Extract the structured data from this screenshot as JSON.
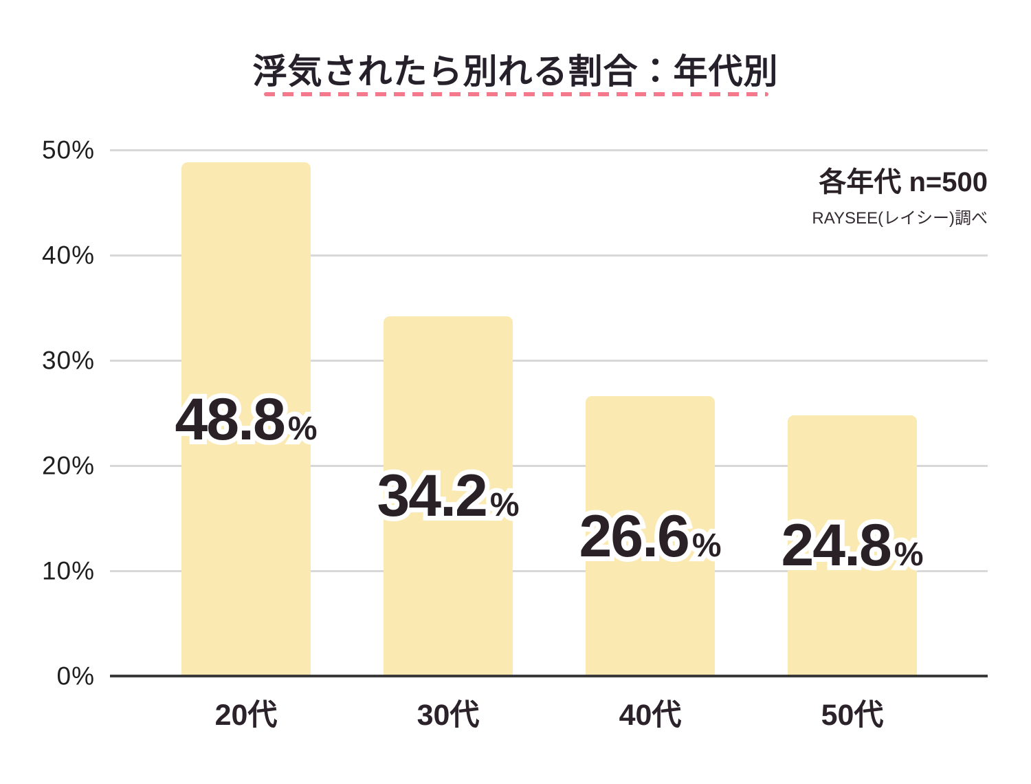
{
  "title": "浮気されたら別れる割合：年代別",
  "annotation": {
    "sample_size": "各年代 n=500",
    "source": "RAYSEE(レイシー)調べ"
  },
  "colors": {
    "bar": "#fae9b0",
    "accent_dash": "#f4798d",
    "text_dark": "#2a2127",
    "gridline": "#d8d8d8",
    "axis": "#3a3a3a"
  },
  "chart_data": {
    "type": "bar",
    "title": "浮気されたら別れる割合：年代別",
    "categories": [
      "20代",
      "30代",
      "40代",
      "50代"
    ],
    "values": [
      48.8,
      34.2,
      26.6,
      24.8
    ],
    "value_labels": [
      "48.8",
      "34.2",
      "26.6",
      "24.8"
    ],
    "unit": "%",
    "xlabel": "",
    "ylabel": "",
    "ylim": [
      0,
      50
    ],
    "yticks": [
      0,
      10,
      20,
      30,
      40,
      50
    ],
    "ytick_labels": [
      "0%",
      "10%",
      "20%",
      "30%",
      "40%",
      "50%"
    ],
    "grid": true,
    "legend": false,
    "annotations": [
      "各年代 n=500",
      "RAYSEE(レイシー)調べ"
    ]
  }
}
